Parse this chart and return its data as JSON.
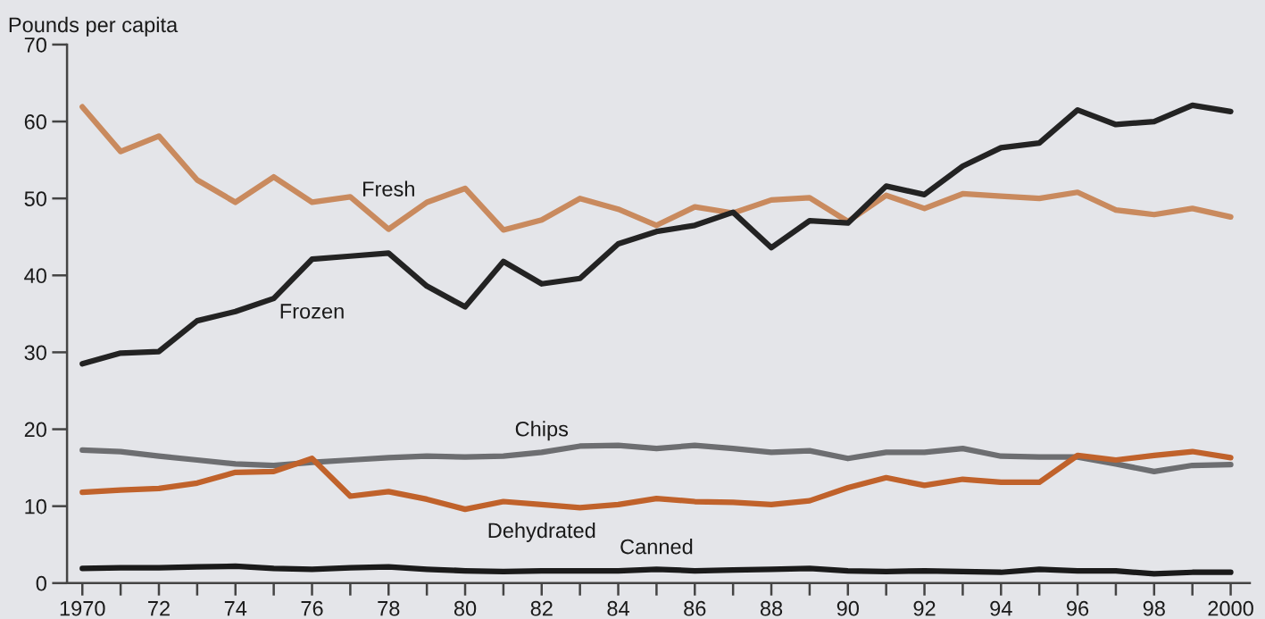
{
  "chart_data": {
    "type": "line",
    "ylabel": "Pounds per capita",
    "x": [
      1970,
      1971,
      1972,
      1973,
      1974,
      1975,
      1976,
      1977,
      1978,
      1979,
      1980,
      1981,
      1982,
      1983,
      1984,
      1985,
      1986,
      1987,
      1988,
      1989,
      1990,
      1991,
      1992,
      1993,
      1994,
      1995,
      1996,
      1997,
      1998,
      1999,
      2000
    ],
    "series": [
      {
        "name": "Fresh",
        "color": "#c98a5e",
        "values": [
          61.9,
          56.1,
          58.1,
          52.4,
          49.5,
          52.8,
          49.5,
          50.2,
          46.0,
          49.5,
          51.3,
          45.9,
          47.2,
          50.0,
          48.6,
          46.5,
          48.9,
          48.1,
          49.8,
          50.1,
          47.0,
          50.4,
          48.7,
          50.6,
          50.3,
          50.0,
          50.8,
          48.5,
          47.9,
          48.7,
          47.6
        ]
      },
      {
        "name": "Frozen",
        "color": "#232323",
        "values": [
          28.5,
          29.9,
          30.1,
          34.1,
          35.3,
          37.0,
          42.1,
          42.5,
          42.9,
          38.6,
          35.9,
          41.8,
          38.9,
          39.6,
          44.1,
          45.7,
          46.5,
          48.2,
          43.6,
          47.1,
          46.8,
          51.6,
          50.5,
          54.2,
          56.6,
          57.2,
          61.5,
          59.6,
          60.0,
          62.1,
          61.3
        ]
      },
      {
        "name": "Chips",
        "color": "#6d6e71",
        "values": [
          17.3,
          17.1,
          16.5,
          16.0,
          15.5,
          15.3,
          15.7,
          16.0,
          16.3,
          16.5,
          16.4,
          16.5,
          17.0,
          17.8,
          17.9,
          17.5,
          17.9,
          17.5,
          17.0,
          17.2,
          16.2,
          17.0,
          17.0,
          17.5,
          16.5,
          16.4,
          16.4,
          15.5,
          14.5,
          15.3,
          15.4
        ]
      },
      {
        "name": "Dehydrated",
        "color": "#c0622b",
        "values": [
          11.8,
          12.1,
          12.3,
          13.0,
          14.4,
          14.5,
          16.2,
          11.3,
          11.9,
          10.9,
          9.6,
          10.6,
          10.2,
          9.8,
          10.2,
          11.0,
          10.6,
          10.5,
          10.2,
          10.7,
          12.4,
          13.7,
          12.7,
          13.5,
          13.1,
          13.1,
          16.6,
          16.0,
          16.6,
          17.1,
          16.3
        ]
      },
      {
        "name": "Canned",
        "color": "#1a1a1a",
        "values": [
          1.9,
          2.0,
          2.0,
          2.1,
          2.2,
          1.9,
          1.8,
          2.0,
          2.1,
          1.8,
          1.6,
          1.5,
          1.6,
          1.6,
          1.6,
          1.8,
          1.6,
          1.7,
          1.8,
          1.9,
          1.6,
          1.5,
          1.6,
          1.5,
          1.4,
          1.8,
          1.6,
          1.6,
          1.2,
          1.4,
          1.4
        ]
      }
    ],
    "xlim": [
      1969.6,
      2000.5
    ],
    "ylim": [
      0,
      70
    ],
    "yticks": [
      0,
      10,
      20,
      30,
      40,
      50,
      60,
      70
    ],
    "xticks": [
      {
        "value": 1970,
        "label": "1970"
      },
      {
        "value": 1971,
        "label": null
      },
      {
        "value": 1972,
        "label": "72"
      },
      {
        "value": 1973,
        "label": null
      },
      {
        "value": 1974,
        "label": "74"
      },
      {
        "value": 1975,
        "label": null
      },
      {
        "value": 1976,
        "label": "76"
      },
      {
        "value": 1977,
        "label": null
      },
      {
        "value": 1978,
        "label": "78"
      },
      {
        "value": 1979,
        "label": null
      },
      {
        "value": 1980,
        "label": "80"
      },
      {
        "value": 1981,
        "label": null
      },
      {
        "value": 1982,
        "label": "82"
      },
      {
        "value": 1983,
        "label": null
      },
      {
        "value": 1984,
        "label": "84"
      },
      {
        "value": 1985,
        "label": null
      },
      {
        "value": 1986,
        "label": "86"
      },
      {
        "value": 1987,
        "label": null
      },
      {
        "value": 1988,
        "label": "88"
      },
      {
        "value": 1989,
        "label": null
      },
      {
        "value": 1990,
        "label": "90"
      },
      {
        "value": 1991,
        "label": null
      },
      {
        "value": 1992,
        "label": "92"
      },
      {
        "value": 1993,
        "label": null
      },
      {
        "value": 1994,
        "label": "94"
      },
      {
        "value": 1995,
        "label": null
      },
      {
        "value": 1996,
        "label": "96"
      },
      {
        "value": 1997,
        "label": null
      },
      {
        "value": 1998,
        "label": "98"
      },
      {
        "value": 1999,
        "label": null
      },
      {
        "value": 2000,
        "label": "2000"
      }
    ],
    "grid": false,
    "legend": false,
    "marker": "none",
    "line_style": "solid"
  }
}
